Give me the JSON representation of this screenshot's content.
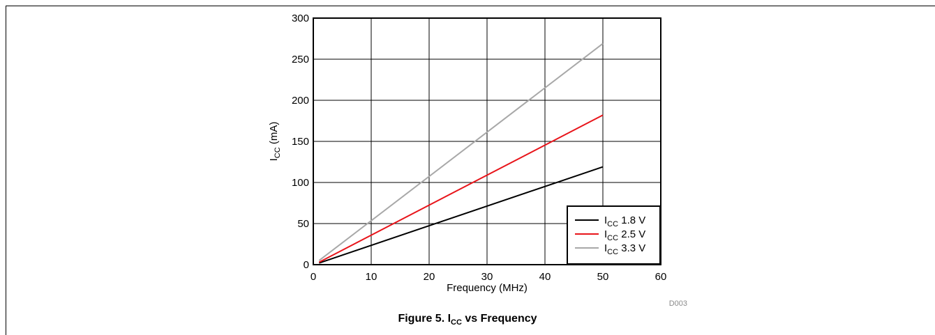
{
  "figure": {
    "label": "Figure 5. ",
    "title_main": "I",
    "title_sub": "CC",
    "title_rest": " vs Frequency",
    "code": "D003"
  },
  "chart_data": {
    "type": "line",
    "xlabel": "Frequency (MHz)",
    "ylabel_main": "I",
    "ylabel_sub": "CC",
    "ylabel_rest": " (mA)",
    "xlim": [
      0,
      60
    ],
    "ylim": [
      0,
      300
    ],
    "xticks": [
      0,
      10,
      20,
      30,
      40,
      50,
      60
    ],
    "yticks": [
      0,
      50,
      100,
      150,
      200,
      250,
      300
    ],
    "grid": true,
    "legend_position": "bottom-right",
    "series": [
      {
        "name_main": "I",
        "name_sub": "CC",
        "name_rest": " 1.8 V",
        "color": "#000000",
        "x": [
          1,
          50
        ],
        "y": [
          2,
          119
        ]
      },
      {
        "name_main": "I",
        "name_sub": "CC",
        "name_rest": " 2.5 V",
        "color": "#e8141a",
        "x": [
          1,
          50
        ],
        "y": [
          3,
          182
        ]
      },
      {
        "name_main": "I",
        "name_sub": "CC",
        "name_rest": " 3.3 V",
        "color": "#a8a8a8",
        "x": [
          1,
          50
        ],
        "y": [
          5,
          269
        ]
      }
    ]
  }
}
